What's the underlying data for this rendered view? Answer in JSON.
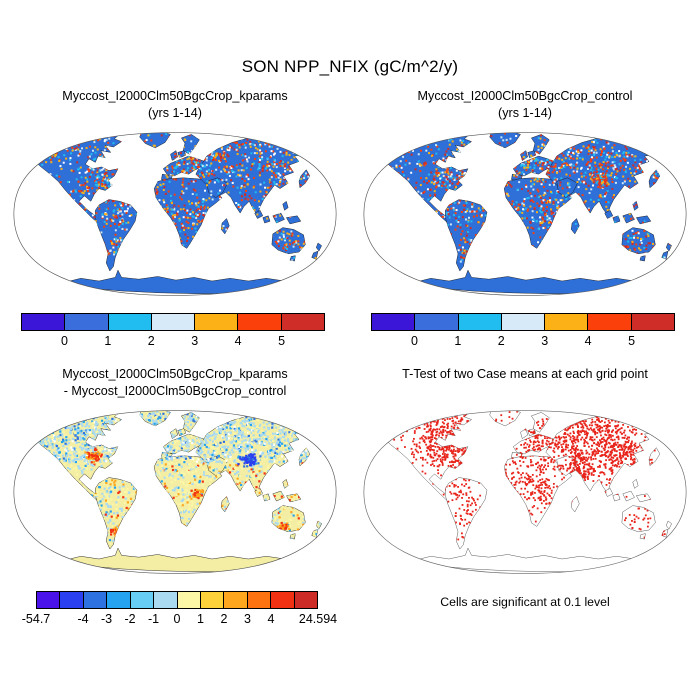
{
  "figure": {
    "title": "SON NPP_NFIX (gC/m^2/y)"
  },
  "panels": [
    {
      "id": "kparams",
      "title_line1": "Myccost_I2000Clm50BgcCrop_kparams",
      "title_line2": "(yrs 1-14)",
      "land_color": "#2e6fd8",
      "coast_color": "#1a1a1a",
      "colorbar": {
        "colors": [
          "#3b16d9",
          "#3a6edd",
          "#21bdf0",
          "#d6ebf7",
          "#fcb216",
          "#fb400b",
          "#cf2d27"
        ],
        "ticks": [
          {
            "label": "0",
            "pos": 1
          },
          {
            "label": "1",
            "pos": 2
          },
          {
            "label": "2",
            "pos": 3
          },
          {
            "label": "3",
            "pos": 4
          },
          {
            "label": "4",
            "pos": 5
          },
          {
            "label": "5",
            "pos": 6
          }
        ]
      }
    },
    {
      "id": "control",
      "title_line1": "Myccost_I2000Clm50BgcCrop_control",
      "title_line2": "(yrs 1-14)",
      "land_color": "#2e6fd8",
      "coast_color": "#1a1a1a",
      "colorbar": {
        "colors": [
          "#3b16d9",
          "#3a6edd",
          "#21bdf0",
          "#d6ebf7",
          "#fcb216",
          "#fb400b",
          "#cf2d27"
        ],
        "ticks": [
          {
            "label": "0",
            "pos": 1
          },
          {
            "label": "1",
            "pos": 2
          },
          {
            "label": "2",
            "pos": 3
          },
          {
            "label": "3",
            "pos": 4
          },
          {
            "label": "4",
            "pos": 5
          },
          {
            "label": "5",
            "pos": 6
          }
        ]
      }
    },
    {
      "id": "diff",
      "title_line1": "Myccost_I2000Clm50BgcCrop_kparams",
      "title_line2": "- Myccost_I2000Clm50BgcCrop_control",
      "land_color": "#f4eea4",
      "coast_color": "#1a1a1a",
      "colorbar": {
        "colors": [
          "#4a13ea",
          "#2b40f0",
          "#2e71e0",
          "#25a3f0",
          "#67cdf4",
          "#a9daf2",
          "#fbf7a6",
          "#fed23a",
          "#fda61e",
          "#fd7211",
          "#f13111",
          "#cd2c26"
        ],
        "ticks": [
          {
            "label": "-54.7",
            "pos": 0
          },
          {
            "label": "-4",
            "pos": 2
          },
          {
            "label": "-3",
            "pos": 3
          },
          {
            "label": "-2",
            "pos": 4
          },
          {
            "label": "-1",
            "pos": 5
          },
          {
            "label": "0",
            "pos": 6
          },
          {
            "label": "1",
            "pos": 7
          },
          {
            "label": "2",
            "pos": 8
          },
          {
            "label": "3",
            "pos": 9
          },
          {
            "label": "4",
            "pos": 10
          },
          {
            "label": "24.594",
            "pos": 12
          }
        ]
      }
    },
    {
      "id": "ttest",
      "title_line1": "T-Test of two Case means at each grid point",
      "title_line2": "",
      "land_color": "#ffffff",
      "coast_color": "#333333",
      "caption": "Cells are significant at 0.1 level",
      "significance_color": "#e8231a"
    }
  ],
  "chart_data": [
    {
      "type": "heatmap",
      "subtype": "global-map-robinson",
      "title": "Myccost_I2000Clm50BgcCrop_kparams (yrs 1-14)",
      "variable": "NPP_NFIX",
      "season": "SON",
      "units": "gC/m^2/y",
      "levels": [
        0,
        1,
        2,
        3,
        4,
        5
      ],
      "palette": [
        "#3b16d9",
        "#3a6edd",
        "#21bdf0",
        "#d6ebf7",
        "#fcb216",
        "#fb400b",
        "#cf2d27"
      ],
      "legend_position": "below",
      "notes": "land mostly in 0-1 (blue) with scattered high-value cells over eastern North America, Europe, southern South America, East Africa, coastal Australia"
    },
    {
      "type": "heatmap",
      "subtype": "global-map-robinson",
      "title": "Myccost_I2000Clm50BgcCrop_control (yrs 1-14)",
      "variable": "NPP_NFIX",
      "season": "SON",
      "units": "gC/m^2/y",
      "levels": [
        0,
        1,
        2,
        3,
        4,
        5
      ],
      "palette": [
        "#3b16d9",
        "#3a6edd",
        "#21bdf0",
        "#d6ebf7",
        "#fcb216",
        "#fb400b",
        "#cf2d27"
      ],
      "legend_position": "below",
      "notes": "similar to kparams panel with a denser high-value (red) patch over central Asia"
    },
    {
      "type": "heatmap",
      "subtype": "global-map-robinson",
      "title": "Myccost_I2000Clm50BgcCrop_kparams - Myccost_I2000Clm50BgcCrop_control",
      "variable": "NPP_NFIX difference",
      "season": "SON",
      "units": "gC/m^2/y",
      "levels": [
        -4,
        -3,
        -2,
        -1,
        0,
        1,
        2,
        3,
        4
      ],
      "range_min": -54.7,
      "range_max": 24.594,
      "palette": [
        "#4a13ea",
        "#2b40f0",
        "#2e71e0",
        "#25a3f0",
        "#67cdf4",
        "#a9daf2",
        "#fbf7a6",
        "#fed23a",
        "#fda61e",
        "#fd7211",
        "#f13111",
        "#cd2c26"
      ],
      "legend_position": "below",
      "notes": "northern latitudes mostly slightly negative (pale blue), tropics slightly positive (pale yellow), strong negative patch over Tibet, scattered positive cells in central US, Argentina, East Africa, southern Australia"
    },
    {
      "type": "heatmap",
      "subtype": "global-map-robinson",
      "title": "T-Test of two Case means at each grid point",
      "note": "Cells are significant at 0.1 level",
      "significance_color": "#e8231a",
      "notes": "significant cells (red) dense over boreal North America, Eurasia, Africa and Asia; sparse over Amazon interior; none over Antarctica"
    }
  ]
}
